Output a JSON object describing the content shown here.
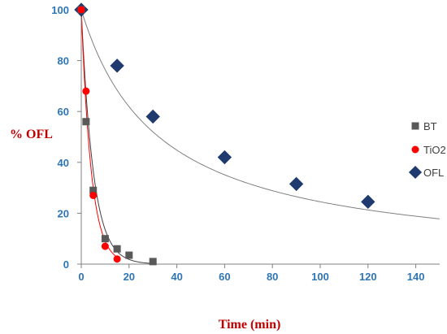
{
  "chart_data": {
    "type": "scatter",
    "title": "",
    "xlabel": "Time (min)",
    "ylabel": "% OFL",
    "xlim": [
      0,
      150
    ],
    "ylim": [
      0,
      100
    ],
    "x_ticks": [
      0,
      20,
      40,
      60,
      80,
      100,
      120,
      140
    ],
    "y_ticks": [
      0,
      20,
      40,
      60,
      80,
      100
    ],
    "grid": false,
    "legend_position": "right",
    "series": [
      {
        "name": "BT",
        "marker": "square",
        "color": "#595959",
        "x": [
          0,
          2,
          5,
          10,
          15,
          20,
          30
        ],
        "y": [
          100,
          56,
          29,
          10,
          6,
          3.5,
          1
        ],
        "fit_rate": 0.2,
        "fit_color": "#404040"
      },
      {
        "name": "TiO2",
        "marker": "circle",
        "color": "#FF0000",
        "x": [
          0,
          2,
          5,
          10,
          15
        ],
        "y": [
          100,
          68,
          27,
          7,
          2
        ],
        "fit_rate": 0.24,
        "fit_color": "#FF0000"
      },
      {
        "name": "OFL",
        "marker": "diamond",
        "color": "#1F3A6E",
        "x": [
          0,
          15,
          30,
          60,
          90,
          120
        ],
        "y": [
          100,
          78,
          58,
          42,
          31.5,
          24.5
        ],
        "fit_rate": 0.011,
        "fit_color": "#808080"
      }
    ]
  }
}
